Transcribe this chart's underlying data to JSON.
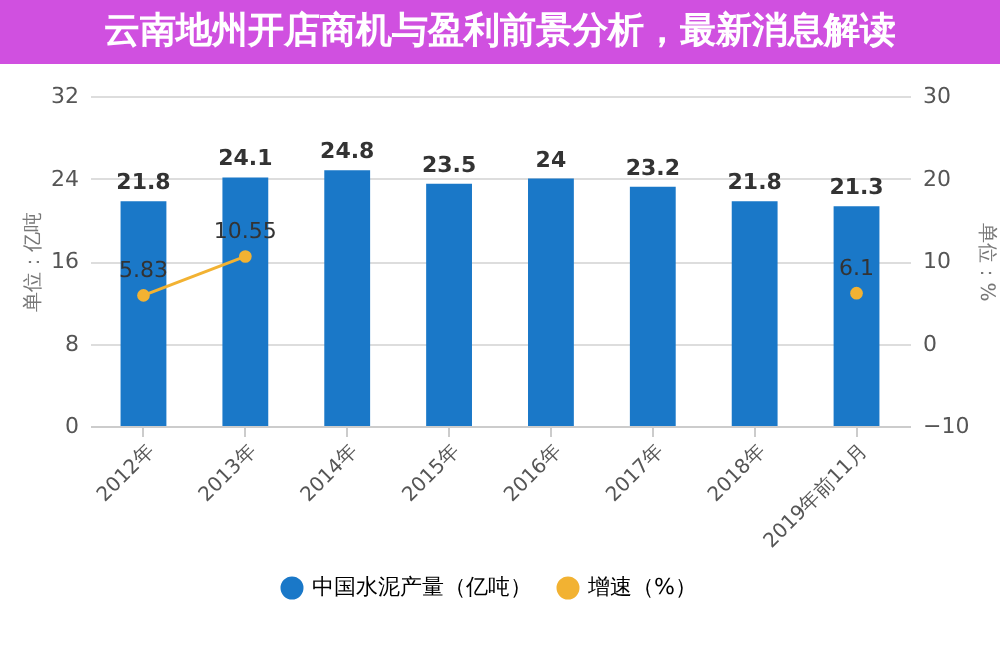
{
  "chart_data": {
    "type": "bar",
    "categories": [
      "2012年",
      "2013年",
      "2014年",
      "2015年",
      "2016年",
      "2017年",
      "2018年",
      "2019年前11月"
    ],
    "series": [
      {
        "name": "中国水泥产量（亿吨）",
        "color": "#1a78c8",
        "values": [
          21.8,
          24.1,
          24.8,
          23.5,
          24,
          23.2,
          21.8,
          21.3
        ]
      },
      {
        "name": "增速（%）",
        "type": "line",
        "axis": "y2",
        "color": "#f2b232",
        "values": [
          5.83,
          10.55,
          null,
          null,
          null,
          null,
          null,
          6.1
        ]
      }
    ],
    "ylabel": "单位：亿吨",
    "y2label": "单位：%",
    "ylim": [
      0,
      32
    ],
    "yticks": [
      0,
      8,
      16,
      24,
      32
    ],
    "y2lim": [
      -10,
      30
    ],
    "y2ticks": [
      -10,
      0,
      10,
      20,
      30
    ],
    "grid": "y",
    "legend": "bottom",
    "marker": "circle",
    "data_labels": true,
    "annotations": [
      "云南地州开店商机与盈利前景分析，最新消息解读"
    ]
  }
}
